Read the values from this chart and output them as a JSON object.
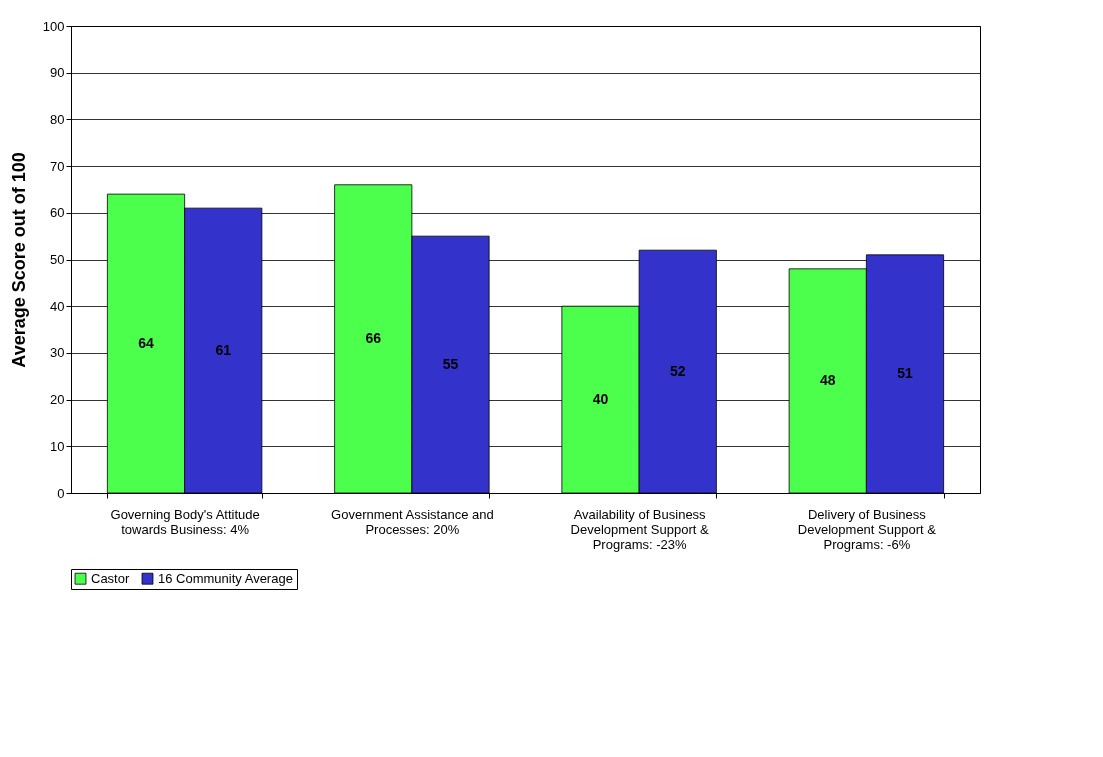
{
  "chart_data": {
    "type": "bar",
    "ylabel": "Average Score out of 100",
    "categories": [
      "Governing Body's Attitude towards Business: 4%",
      "Government Assistance and Processes: 20%",
      "Availability of Business Development Support & Programs: -23%",
      "Delivery of Business Development Support & Programs: -6%"
    ],
    "series": [
      {
        "name": "Castor",
        "color": "#4dff4d",
        "values": [
          64,
          66,
          40,
          48
        ]
      },
      {
        "name": "16 Community Average",
        "color": "#3333cc",
        "values": [
          61,
          55,
          52,
          51
        ]
      }
    ],
    "ylim": [
      0,
      100
    ],
    "yticks": [
      0,
      10,
      20,
      30,
      40,
      50,
      60,
      70,
      80,
      90,
      100
    ],
    "grid": "y",
    "legend": "bottom",
    "data_labels": true
  }
}
